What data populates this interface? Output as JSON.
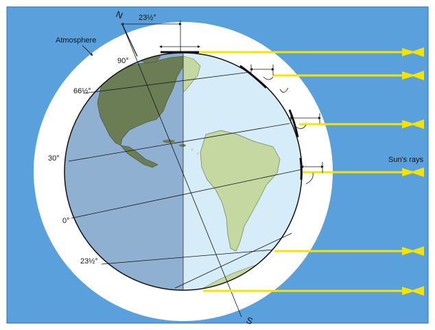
{
  "labels": {
    "north": "N",
    "south": "S",
    "atmosphere": "Atmosphere",
    "suns_rays": "Sun's rays",
    "tilt_top": "23½°",
    "lat_90": "90°",
    "lat_66": "66½°",
    "lat_30": "30°",
    "lat_0": "0°",
    "lat_23": "23½°"
  },
  "colors": {
    "sky": "#5aa0dc",
    "atmosphere": "#ffffff",
    "earth_night": "#8fb0d0",
    "earth_day": "#d6ecf8",
    "land_night": "#6b7d55",
    "land_day": "#c6d8a2",
    "ray": "#f5e400"
  }
}
